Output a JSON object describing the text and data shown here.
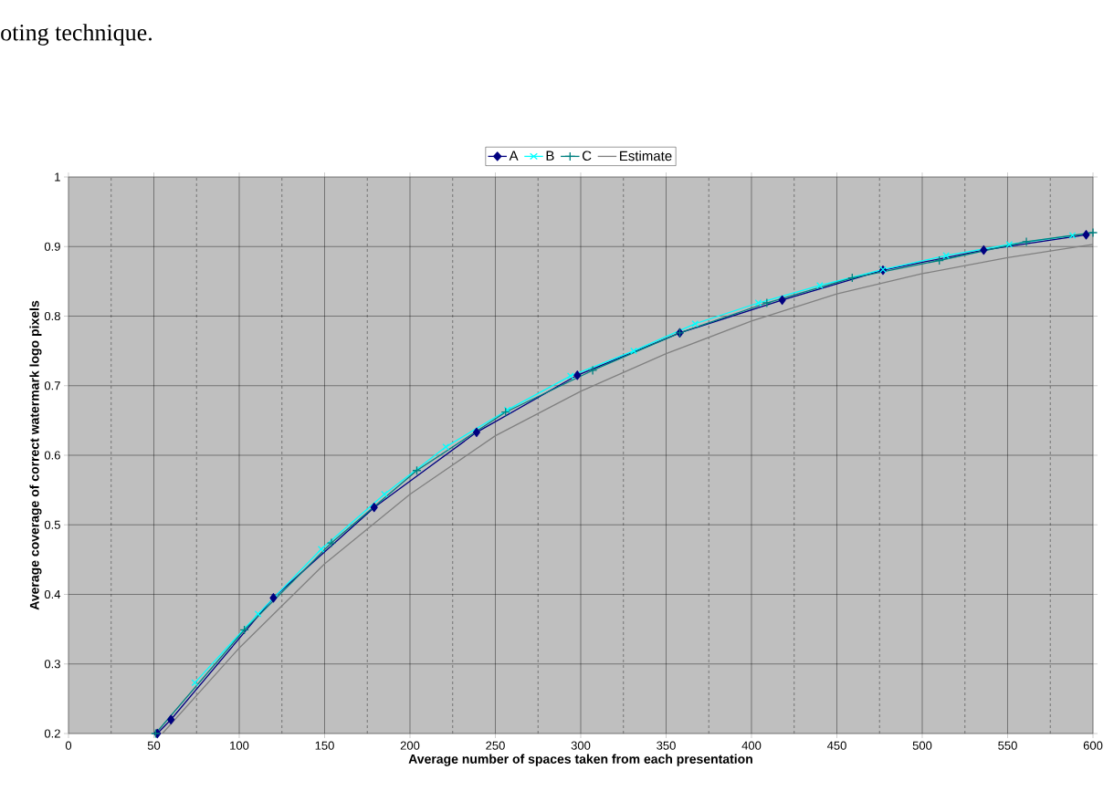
{
  "chart_data": {
    "type": "line",
    "xlabel": "Average number of spaces taken from each presentation",
    "ylabel": "Average coverage of correct watermark logo pixels",
    "annotations": [
      "oting technique."
    ],
    "xlim": [
      0,
      600
    ],
    "ylim": [
      0.2,
      1
    ],
    "xticks": [
      0,
      50,
      100,
      150,
      200,
      250,
      300,
      350,
      400,
      450,
      500,
      550,
      600
    ],
    "yticks": [
      0.2,
      0.3,
      0.4,
      0.5,
      0.6,
      0.7,
      0.8,
      0.9,
      1
    ],
    "grid": true,
    "legend": "top",
    "series": [
      {
        "name": "A",
        "color": "#000080",
        "marker": "diamond",
        "x": [
          52,
          60,
          120,
          179,
          239,
          298,
          358,
          418,
          477,
          536,
          596
        ],
        "values": [
          0.2,
          0.22,
          0.395,
          0.525,
          0.633,
          0.715,
          0.776,
          0.823,
          0.866,
          0.895,
          0.917
        ]
      },
      {
        "name": "B",
        "color": "#00ffff",
        "marker": "cross",
        "x": [
          74,
          111,
          148,
          185,
          221,
          257,
          294,
          331,
          367,
          404,
          440,
          477,
          514,
          551,
          588
        ],
        "values": [
          0.273,
          0.372,
          0.465,
          0.544,
          0.612,
          0.665,
          0.714,
          0.75,
          0.789,
          0.819,
          0.844,
          0.867,
          0.887,
          0.903,
          0.916
        ]
      },
      {
        "name": "C",
        "color": "#008080",
        "marker": "plus",
        "x": [
          51,
          103,
          154,
          204,
          256,
          307,
          358,
          409,
          459,
          510,
          561,
          600
        ],
        "values": [
          0.2,
          0.349,
          0.474,
          0.578,
          0.662,
          0.722,
          0.776,
          0.819,
          0.855,
          0.88,
          0.907,
          0.92
        ]
      },
      {
        "name": "Estimate",
        "color": "#808080",
        "marker": "none",
        "x": [
          55,
          100,
          150,
          200,
          250,
          300,
          350,
          400,
          450,
          500,
          550,
          600
        ],
        "values": [
          0.2,
          0.323,
          0.444,
          0.544,
          0.628,
          0.692,
          0.746,
          0.793,
          0.832,
          0.861,
          0.884,
          0.903
        ]
      }
    ]
  }
}
